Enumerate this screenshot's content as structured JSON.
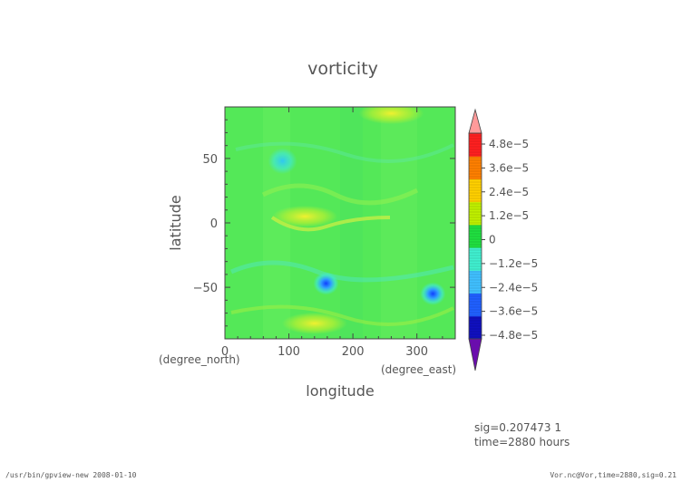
{
  "chart_data": {
    "type": "heatmap",
    "title": "vorticity",
    "xlabel": "longitude",
    "ylabel": "latitude",
    "x_units": "(degree_east)",
    "y_units": "(degree_north)",
    "xlim": [
      0,
      360
    ],
    "ylim": [
      -90,
      90
    ],
    "x_ticks": [
      "0",
      "100",
      "200",
      "300"
    ],
    "x_tick_values": [
      0,
      100,
      200,
      300
    ],
    "y_ticks": [
      "50",
      "0",
      "−50"
    ],
    "y_tick_values": [
      50,
      0,
      -50
    ],
    "colorbar": {
      "labels": [
        "4.8e−5",
        "3.6e−5",
        "2.4e−5",
        "1.2e−5",
        "0",
        "−1.2e−5",
        "−2.4e−5",
        "−3.6e−5",
        "−4.8e−5"
      ],
      "values": [
        4.8e-05,
        3.6e-05,
        2.4e-05,
        1.2e-05,
        0,
        -1.2e-05,
        -2.4e-05,
        -3.6e-05,
        -4.8e-05
      ],
      "range": [
        -4.8e-05,
        4.8e-05
      ],
      "colors": [
        "#6a0dad",
        "#1010c0",
        "#2060ff",
        "#40c0ff",
        "#40f0d0",
        "#20e040",
        "#c0f000",
        "#ffd000",
        "#ff8000",
        "#ff2020",
        "#ff9a9a"
      ]
    },
    "features": [
      {
        "lon": 90,
        "lat": 48,
        "value": -2e-05
      },
      {
        "lon": 158,
        "lat": -47,
        "value": -3e-05
      },
      {
        "lon": 325,
        "lat": -55,
        "value": -4.2e-05
      },
      {
        "lon": 260,
        "lat": 85,
        "value": 2e-05
      },
      {
        "lon": 125,
        "lat": 5,
        "value": 2.4e-05
      },
      {
        "lon": 140,
        "lat": -78,
        "value": 1.6e-05
      }
    ],
    "grid": false
  },
  "annotations": {
    "sig_line": "sig=0.207473  1",
    "time_line": "time=2880  hours",
    "footer_left": "/usr/bin/gpview-new  2008-01-10",
    "footer_right": "Vor.nc@Vor,time=2880,sig=0.21"
  }
}
